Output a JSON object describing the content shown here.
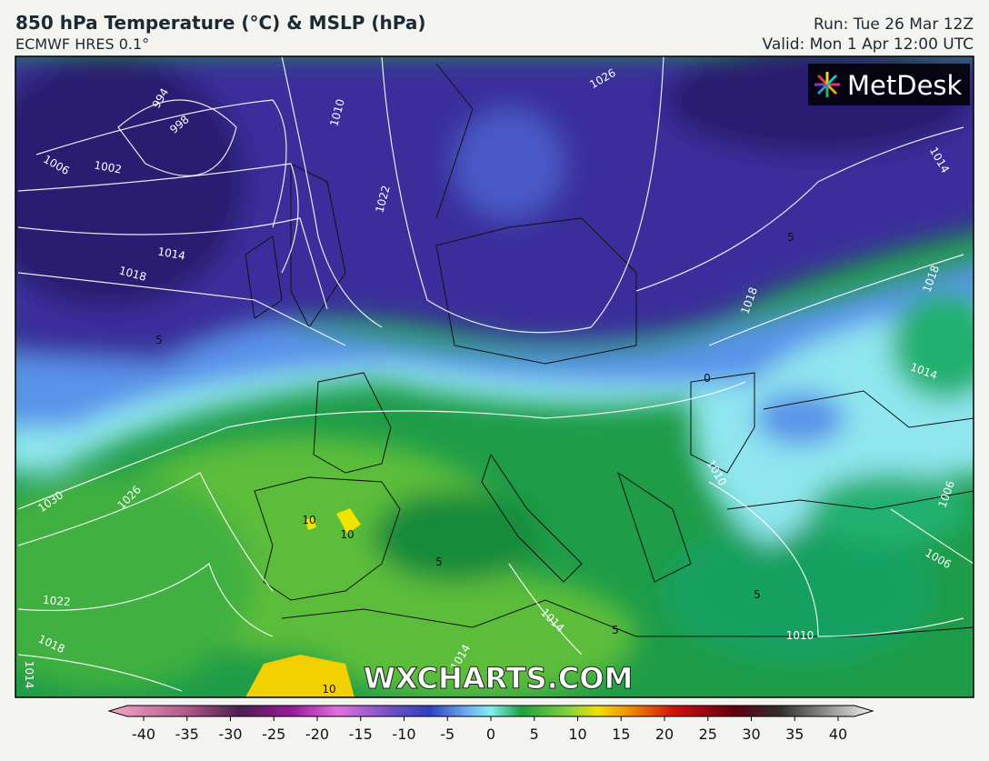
{
  "header": {
    "title": "850 hPa Temperature (°C) & MSLP (hPa)",
    "subtitle": "ECMWF HRES 0.1°",
    "run": "Run: Tue 26 Mar 12Z",
    "valid": "Valid: Mon 1 Apr 12:00 UTC"
  },
  "logo": "MetDesk",
  "watermark": "WXCHARTS.COM",
  "isobar_labels": [
    994,
    998,
    1002,
    1006,
    1010,
    1014,
    1018,
    1022,
    1026,
    1030,
    1026,
    1022,
    1018,
    1014,
    1014,
    1018,
    1018,
    1014,
    1014,
    1010,
    1006,
    1006,
    1010,
    1014
  ],
  "temperature_labels": [
    5,
    5,
    0,
    10,
    10,
    5,
    5,
    5,
    10
  ],
  "colorbar": {
    "ticks": [
      -40,
      -35,
      -30,
      -25,
      -20,
      -15,
      -10,
      -5,
      0,
      5,
      10,
      15,
      20,
      25,
      30,
      35,
      40
    ]
  }
}
